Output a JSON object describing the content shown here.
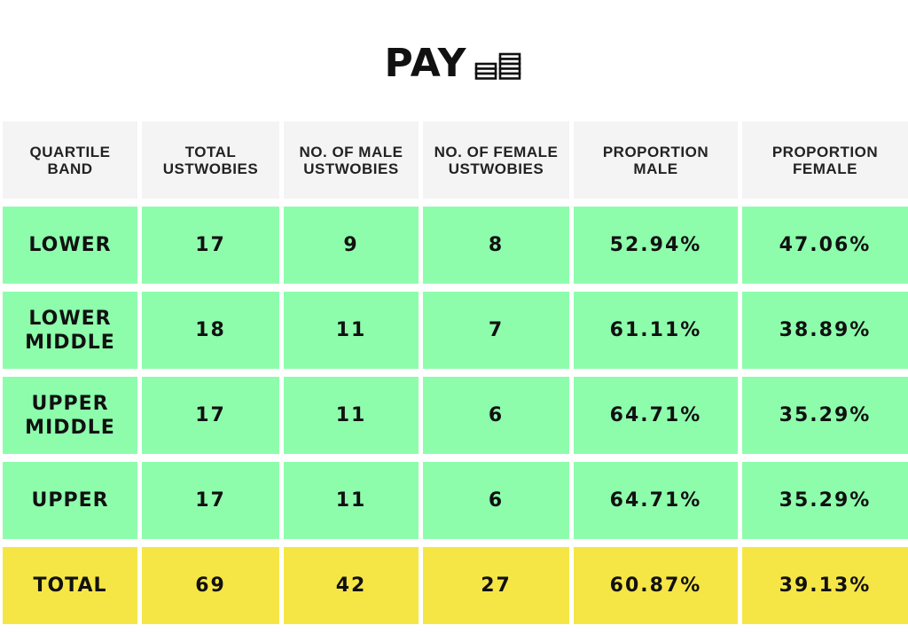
{
  "title": "PAY",
  "colors": {
    "header_bg": "#f4f4f4",
    "quartile_row_bg": "#8dfdac",
    "total_row_bg": "#f6e645",
    "text": "#111111"
  },
  "icons": {
    "title_icon": "stacked-coins-icon"
  },
  "chart_data": {
    "type": "table",
    "title": "PAY",
    "columns": [
      "QUARTILE BAND",
      "TOTAL USTWOBIES",
      "NO. OF MALE USTWOBIES",
      "NO. OF FEMALE USTWOBIES",
      "PROPORTION MALE",
      "PROPORTION FEMALE"
    ],
    "rows": [
      [
        "LOWER",
        "17",
        "9",
        "8",
        "52.94%",
        "47.06%"
      ],
      [
        "LOWER MIDDLE",
        "18",
        "11",
        "7",
        "61.11%",
        "38.89%"
      ],
      [
        "UPPER MIDDLE",
        "17",
        "11",
        "6",
        "64.71%",
        "35.29%"
      ],
      [
        "UPPER",
        "17",
        "11",
        "6",
        "64.71%",
        "35.29%"
      ],
      [
        "TOTAL",
        "69",
        "42",
        "27",
        "60.87%",
        "39.13%"
      ]
    ]
  }
}
